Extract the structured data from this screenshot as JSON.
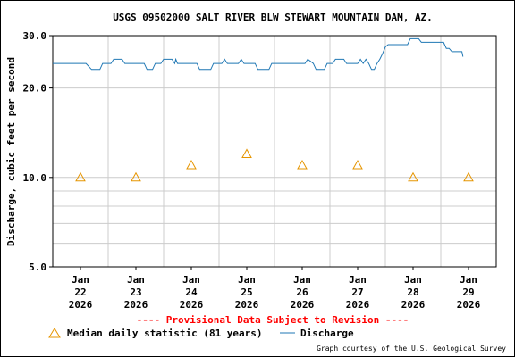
{
  "chart_data": {
    "type": "line",
    "title": "USGS 09502000 SALT RIVER BLW STEWART MOUNTAIN DAM, AZ.",
    "ylabel": "Discharge, cubic feet per second",
    "yscale": "log",
    "ylim": [
      5.0,
      30.0
    ],
    "yticks": [
      {
        "value": 5.0,
        "label": "5.0"
      },
      {
        "value": 10.0,
        "label": "10.0"
      },
      {
        "value": 20.0,
        "label": "20.0"
      },
      {
        "value": 30.0,
        "label": "30.0"
      }
    ],
    "xlim": [
      21.5,
      29.5
    ],
    "xticks": [
      {
        "x": 22,
        "line1": "Jan",
        "line2": "22",
        "line3": "2026"
      },
      {
        "x": 23,
        "line1": "Jan",
        "line2": "23",
        "line3": "2026"
      },
      {
        "x": 24,
        "line1": "Jan",
        "line2": "24",
        "line3": "2026"
      },
      {
        "x": 25,
        "line1": "Jan",
        "line2": "25",
        "line3": "2026"
      },
      {
        "x": 26,
        "line1": "Jan",
        "line2": "26",
        "line3": "2026"
      },
      {
        "x": 27,
        "line1": "Jan",
        "line2": "27",
        "line3": "2026"
      },
      {
        "x": 28,
        "line1": "Jan",
        "line2": "28",
        "line3": "2026"
      },
      {
        "x": 29,
        "line1": "Jan",
        "line2": "29",
        "line3": "2026"
      }
    ],
    "grid": true,
    "series": [
      {
        "name": "Discharge",
        "type": "step-line",
        "color": "#1f77b4",
        "points": [
          [
            21.5,
            24.2
          ],
          [
            22.1,
            24.2
          ],
          [
            22.2,
            23.1
          ],
          [
            22.35,
            23.1
          ],
          [
            22.4,
            24.2
          ],
          [
            22.55,
            24.2
          ],
          [
            22.6,
            25.0
          ],
          [
            22.75,
            25.0
          ],
          [
            22.8,
            24.2
          ],
          [
            23.15,
            24.2
          ],
          [
            23.2,
            23.1
          ],
          [
            23.3,
            23.1
          ],
          [
            23.35,
            24.2
          ],
          [
            23.45,
            24.2
          ],
          [
            23.5,
            25.0
          ],
          [
            23.65,
            25.0
          ],
          [
            23.7,
            24.2
          ],
          [
            23.72,
            25.0
          ],
          [
            23.75,
            24.2
          ],
          [
            24.1,
            24.2
          ],
          [
            24.15,
            23.1
          ],
          [
            24.35,
            23.1
          ],
          [
            24.4,
            24.2
          ],
          [
            24.55,
            24.2
          ],
          [
            24.6,
            25.0
          ],
          [
            24.65,
            24.2
          ],
          [
            24.85,
            24.2
          ],
          [
            24.9,
            25.0
          ],
          [
            24.95,
            24.2
          ],
          [
            25.15,
            24.2
          ],
          [
            25.2,
            23.1
          ],
          [
            25.4,
            23.1
          ],
          [
            25.45,
            24.2
          ],
          [
            26.05,
            24.2
          ],
          [
            26.1,
            25.0
          ],
          [
            26.2,
            24.2
          ],
          [
            26.25,
            23.1
          ],
          [
            26.4,
            23.1
          ],
          [
            26.45,
            24.2
          ],
          [
            26.55,
            24.2
          ],
          [
            26.6,
            25.0
          ],
          [
            26.75,
            25.0
          ],
          [
            26.8,
            24.2
          ],
          [
            27.0,
            24.2
          ],
          [
            27.05,
            25.0
          ],
          [
            27.1,
            24.2
          ],
          [
            27.15,
            25.0
          ],
          [
            27.2,
            24.2
          ],
          [
            27.25,
            23.1
          ],
          [
            27.3,
            23.1
          ],
          [
            27.35,
            24.2
          ],
          [
            27.4,
            25.0
          ],
          [
            27.45,
            26.1
          ],
          [
            27.5,
            27.5
          ],
          [
            27.55,
            28.0
          ],
          [
            27.9,
            28.0
          ],
          [
            27.95,
            29.3
          ],
          [
            28.1,
            29.3
          ],
          [
            28.15,
            28.5
          ],
          [
            28.55,
            28.5
          ],
          [
            28.6,
            27.2
          ],
          [
            28.65,
            27.2
          ],
          [
            28.7,
            26.5
          ],
          [
            28.88,
            26.5
          ],
          [
            28.9,
            25.5
          ]
        ]
      },
      {
        "name": "Median daily statistic (81 years)",
        "type": "marker",
        "marker": "triangle",
        "color": "#e69500",
        "points": [
          [
            22,
            10.0
          ],
          [
            23,
            10.0
          ],
          [
            24,
            11.0
          ],
          [
            25,
            12.0
          ],
          [
            26,
            11.0
          ],
          [
            27,
            11.0
          ],
          [
            28,
            10.0
          ],
          [
            29,
            10.0
          ]
        ]
      }
    ],
    "annotation": "---- Provisional Data Subject to Revision ----",
    "legend": {
      "placement": "bottom",
      "median_label": "Median daily statistic (81 years)",
      "discharge_label": "Discharge"
    },
    "credit": "Graph courtesy of the U.S. Geological Survey"
  },
  "colors": {
    "discharge": "#1f77b4",
    "median": "#e69500",
    "provisional": "#ff0000",
    "grid": "#cccccc"
  }
}
